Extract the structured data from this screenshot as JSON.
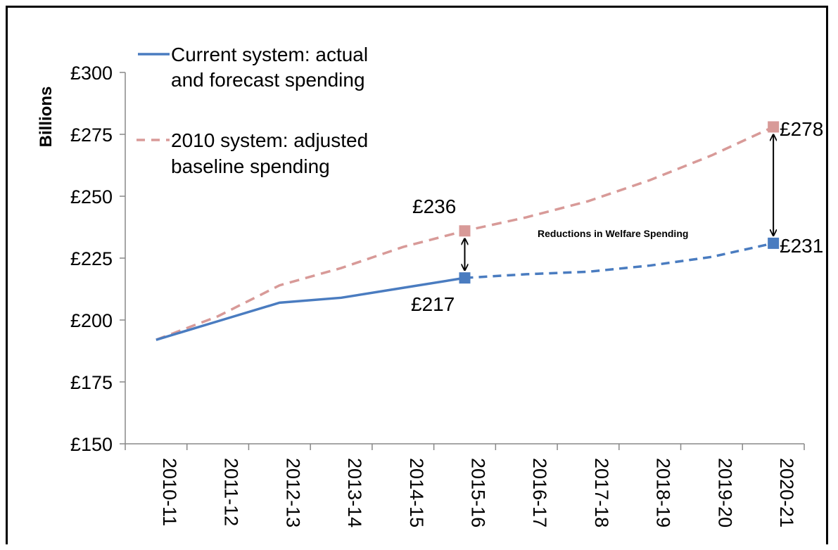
{
  "chart_data": {
    "type": "line",
    "ylabel": "Billions",
    "ylim": [
      150,
      300
    ],
    "y_ticks": [
      "£150",
      "£175",
      "£200",
      "£225",
      "£250",
      "£275",
      "£300"
    ],
    "y_tick_values": [
      150,
      175,
      200,
      225,
      250,
      275,
      300
    ],
    "categories": [
      "2010-11",
      "2011-12",
      "2012-13",
      "2013-14",
      "2014-15",
      "2015-16",
      "2016-17",
      "2017-18",
      "2018-19",
      "2019-20",
      "2020-21"
    ],
    "legend": {
      "current_line1": "Current system: actual",
      "current_line2": "and forecast spending",
      "baseline_line1": "2010 system: adjusted",
      "baseline_line2": "baseline spending"
    },
    "series": [
      {
        "name": "Current system: actual and forecast spending",
        "color": "#4a7cc0",
        "style": "solid until 2015-16, dashed forecast after",
        "values": [
          192,
          199.5,
          207,
          209,
          213,
          217,
          218.5,
          219.5,
          222,
          225.5,
          231
        ]
      },
      {
        "name": "2010 system: adjusted baseline spending",
        "color": "#d89a98",
        "style": "dashed",
        "values": [
          192,
          201.5,
          214,
          221,
          229.5,
          236,
          241.5,
          248,
          256.5,
          266.5,
          278
        ]
      }
    ],
    "data_labels": {
      "b_2015": "£236",
      "c_2015": "£217",
      "b_2020": "£278",
      "c_2020": "£231"
    },
    "annotation": "Reductions in Welfare Spending",
    "grid": false
  }
}
